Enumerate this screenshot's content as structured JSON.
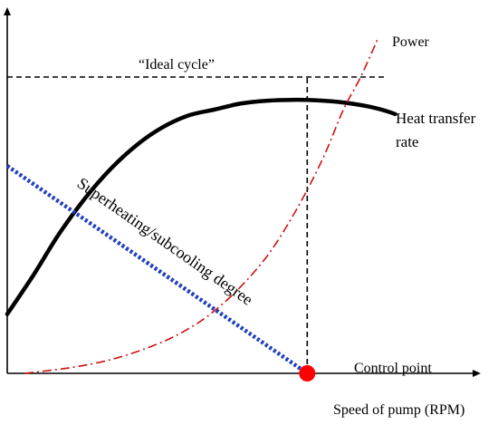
{
  "chart_data": {
    "type": "line",
    "title": "",
    "xlabel": "Speed of pump (RPM)",
    "ylabel": "",
    "xlim": [
      0,
      100
    ],
    "ylim": [
      0,
      100
    ],
    "grid": false,
    "series": [
      {
        "name": "Heat transfer rate",
        "label_lines": [
          "Heat transfer",
          "rate"
        ],
        "style": "solid",
        "color": "#000000",
        "x": [
          0,
          6,
          12,
          18,
          24,
          30,
          36,
          42,
          48,
          54,
          60,
          66,
          72,
          78,
          84,
          88,
          90
        ],
        "y": [
          20,
          33,
          47,
          59,
          69,
          77,
          83,
          87,
          89,
          91,
          92,
          92.3,
          92.1,
          91.4,
          90,
          88.5,
          87.5
        ]
      },
      {
        "name": "Superheating/subcooling degree",
        "style": "dotted",
        "color": "#1f3fbf",
        "x": [
          0,
          69.6
        ],
        "y": [
          70,
          0
        ]
      },
      {
        "name": "Power",
        "style": "dashdot",
        "color": "#cc1111",
        "x": [
          4,
          15,
          25,
          35,
          42,
          48,
          54,
          60,
          65,
          70,
          74,
          78,
          82,
          86
        ],
        "y": [
          0,
          2,
          5,
          10,
          15,
          21,
          29,
          39,
          50,
          63,
          75,
          89,
          100,
          113
        ]
      }
    ],
    "reference_lines": [
      {
        "name": "“Ideal cycle”",
        "orientation": "horizontal",
        "y": 100,
        "x_range": [
          0,
          88
        ],
        "style": "dashed",
        "color": "#000000"
      },
      {
        "name": "control-point-vertical",
        "orientation": "vertical",
        "x": 69.6,
        "y_range": [
          0,
          100
        ],
        "style": "dashed",
        "color": "#000000"
      }
    ],
    "points": [
      {
        "name": "Control point",
        "x": 69.6,
        "y": 0,
        "color": "#ff0000"
      }
    ]
  }
}
